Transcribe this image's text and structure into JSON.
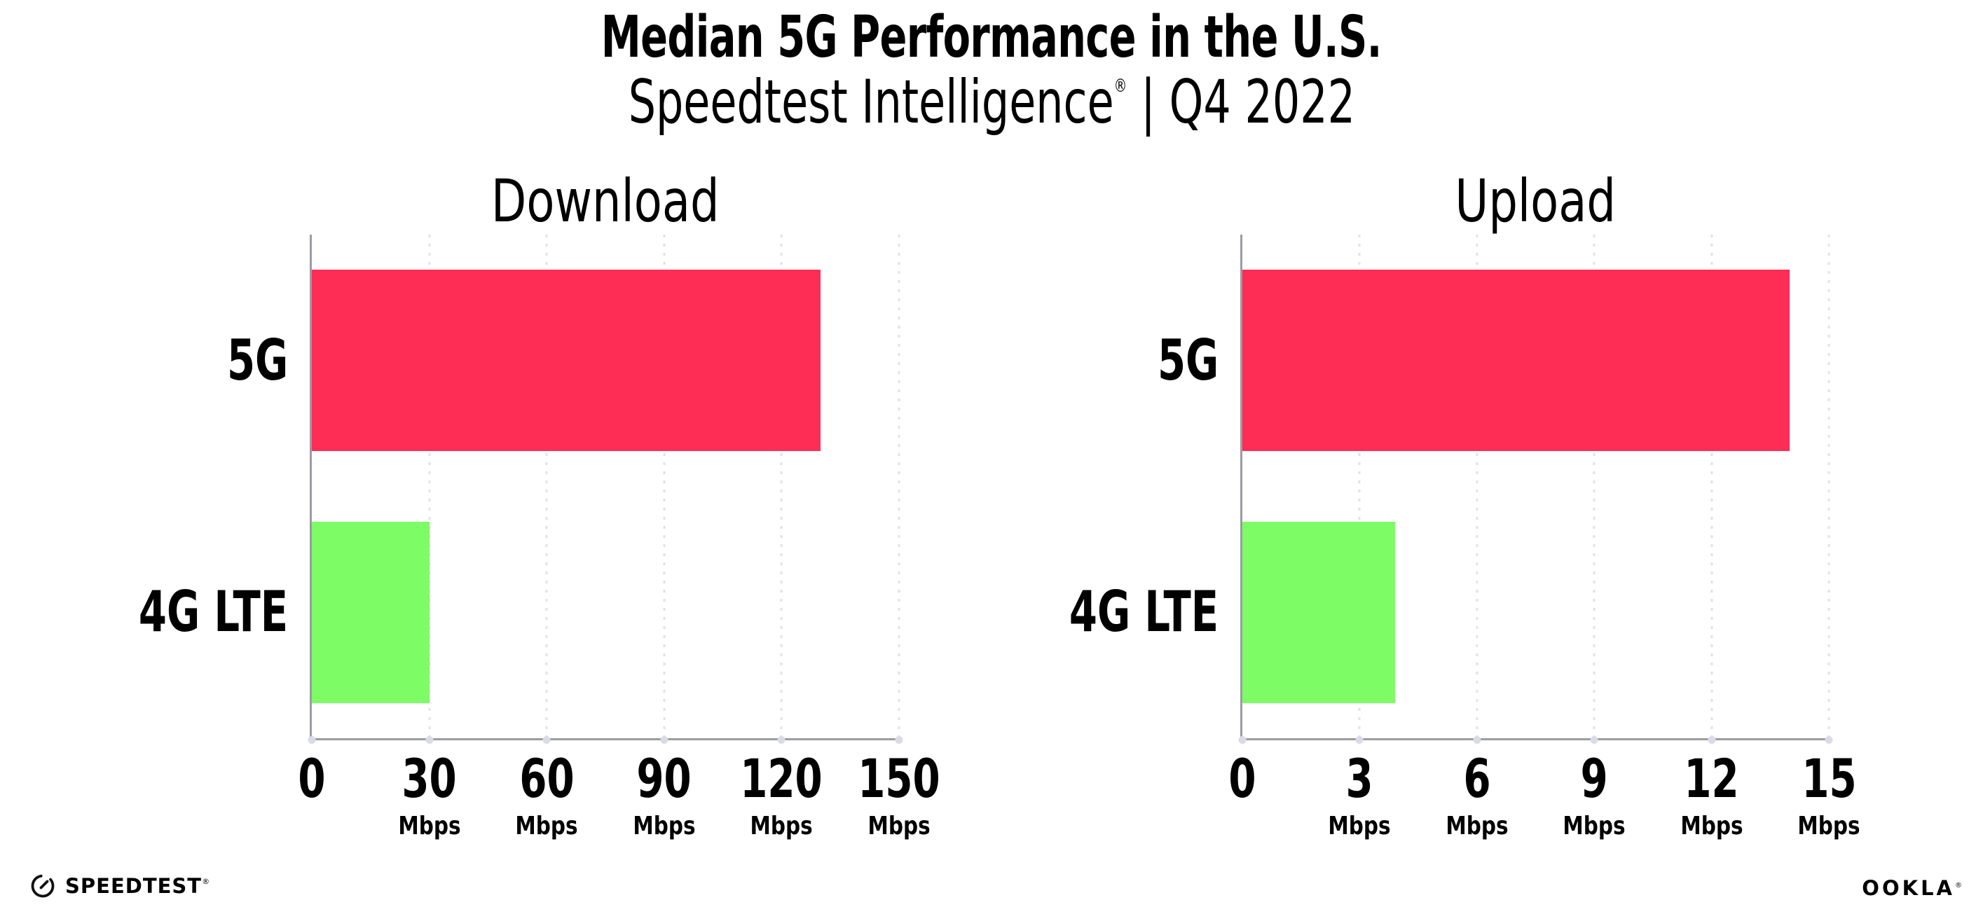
{
  "header": {
    "title": "Median 5G Performance in the U.S.",
    "subtitle_brand": "Speedtest Intelligence",
    "subtitle_registered": "®",
    "subtitle_period": " | Q4 2022"
  },
  "chart_data": [
    {
      "type": "bar",
      "orientation": "horizontal",
      "title": "Download",
      "categories": [
        "5G",
        "4G LTE"
      ],
      "values": [
        130,
        30
      ],
      "unit": "Mbps",
      "xlim": [
        0,
        150
      ],
      "xticks": [
        0,
        30,
        60,
        90,
        120,
        150
      ],
      "bar_colors": [
        "#FE2D55",
        "#7EFC66"
      ],
      "grid": "vertical-dotted",
      "legend": "none"
    },
    {
      "type": "bar",
      "orientation": "horizontal",
      "title": "Upload",
      "categories": [
        "5G",
        "4G LTE"
      ],
      "values": [
        14,
        3.9
      ],
      "unit": "Mbps",
      "xlim": [
        0,
        15
      ],
      "xticks": [
        0,
        3,
        6,
        9,
        12,
        15
      ],
      "bar_colors": [
        "#FE2D55",
        "#7EFC66"
      ],
      "grid": "vertical-dotted",
      "legend": "none"
    }
  ],
  "colors": {
    "bar_5g": "#FE2D55",
    "bar_4g_lte": "#7EFC66",
    "axis": "#9B9BA3",
    "gridline": "#E1E1EB",
    "background": "#FFFFFF",
    "text": "#000000"
  },
  "footer": {
    "speedtest_wordmark": "SPEEDTEST",
    "speedtest_registered": "®",
    "ookla_wordmark": "OOKLA",
    "ookla_registered": "®"
  }
}
